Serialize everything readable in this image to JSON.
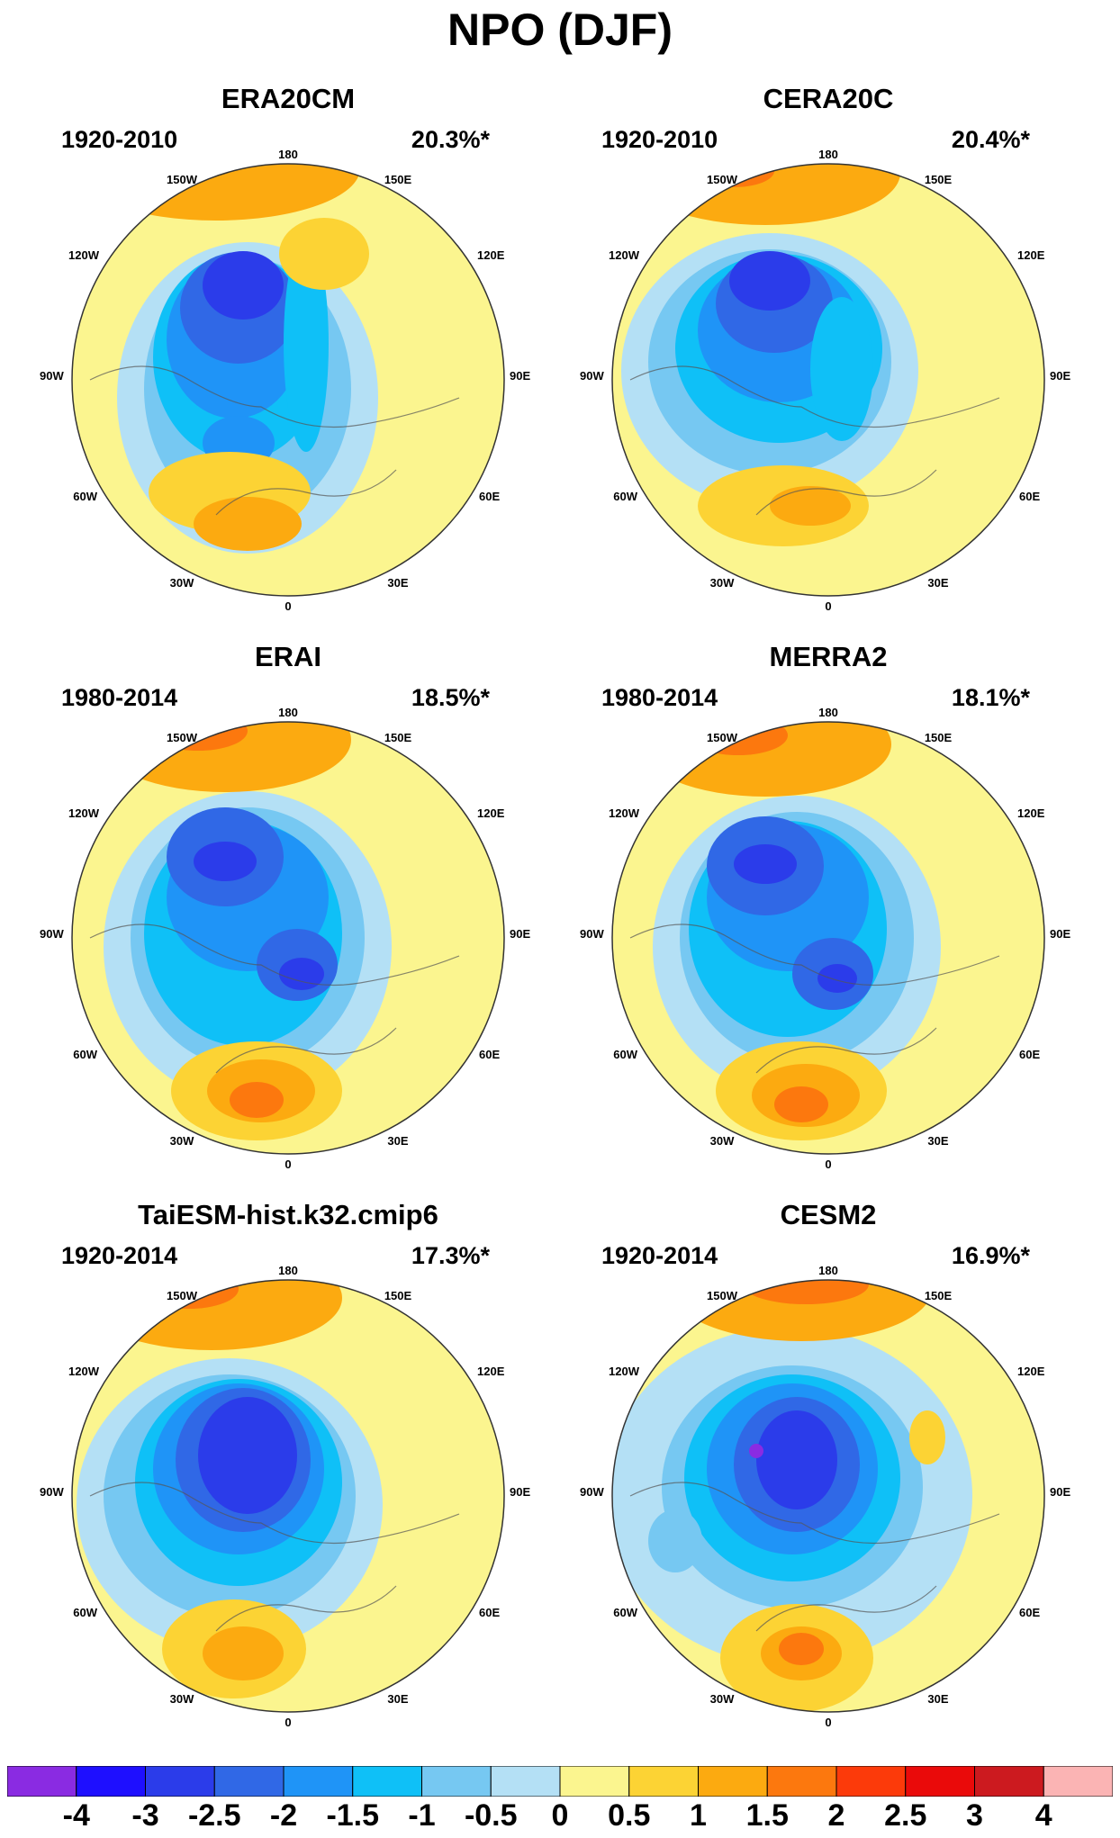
{
  "figure_title": "NPO (DJF)",
  "longitude_labels": {
    "top": "180",
    "upper_left": "150W",
    "upper_right": "150E",
    "left_high": "120W",
    "right_high": "120E",
    "left": "90W",
    "right": "90E",
    "left_low": "60W",
    "right_low": "60E",
    "lower_left": "30W",
    "lower_right": "30E",
    "bottom": "0"
  },
  "colors": {
    "land_outline": "#555555",
    "map_border": "#333333"
  },
  "colorbar": {
    "colors": [
      "#8a2be2",
      "#1e0fff",
      "#2b3cea",
      "#3068e6",
      "#1f94f7",
      "#0fc0f7",
      "#76c8f2",
      "#b4e0f5",
      "#fbf58f",
      "#fcd334",
      "#fcaa10",
      "#fc780e",
      "#fc3a0a",
      "#ea0a0a",
      "#cc1a1f",
      "#fbb4b4"
    ],
    "labels": [
      "-4",
      "-3",
      "-2.5",
      "-2",
      "-1.5",
      "-1",
      "-0.5",
      "0",
      "0.5",
      "1",
      "1.5",
      "2",
      "2.5",
      "3",
      "4"
    ]
  },
  "panels": [
    {
      "title": "ERA20CM",
      "period": "1920-2010",
      "explained_variance": "20.3%*"
    },
    {
      "title": "CERA20C",
      "period": "1920-2010",
      "explained_variance": "20.4%*"
    },
    {
      "title": "ERAI",
      "period": "1980-2014",
      "explained_variance": "18.5%*"
    },
    {
      "title": "MERRA2",
      "period": "1980-2014",
      "explained_variance": "18.1%*"
    },
    {
      "title": "TaiESM-hist.k32.cmip6",
      "period": "1920-2014",
      "explained_variance": "17.3%*"
    },
    {
      "title": "CESM2",
      "period": "1920-2014",
      "explained_variance": "16.9%*"
    }
  ]
}
